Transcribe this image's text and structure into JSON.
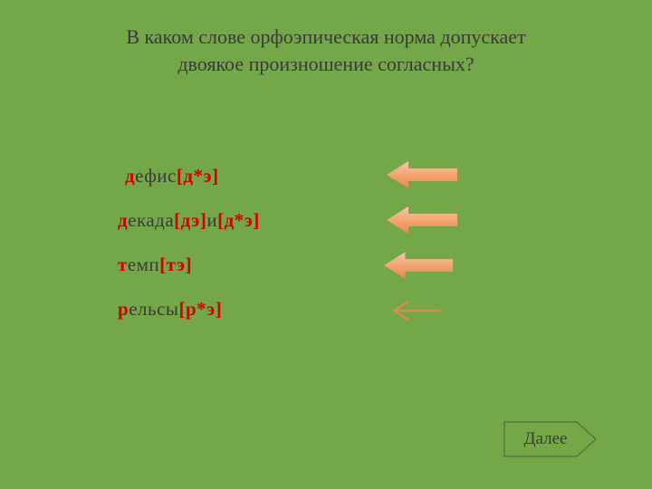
{
  "colors": {
    "background": "#73a748",
    "text_main": "#3a3a3a",
    "text_red": "#d40000",
    "arrow_fill_light": "#f7b58a",
    "arrow_fill_dark": "#e88a50",
    "button_stroke": "#566a44",
    "button_fill": "#73a748"
  },
  "question": {
    "line1": "В каком слове орфоэпическая норма допускает",
    "line2": "двоякое произношение согласных?"
  },
  "options": [
    {
      "pad_left": 8,
      "parts": [
        {
          "text": "д",
          "cls": "red"
        },
        {
          "text": "ефис ",
          "cls": "gray"
        },
        {
          "text": "[д*э]",
          "cls": "red"
        }
      ]
    },
    {
      "pad_left": 0,
      "parts": [
        {
          "text": "д",
          "cls": "red"
        },
        {
          "text": "екада ",
          "cls": "gray"
        },
        {
          "text": "[дэ]",
          "cls": "red"
        },
        {
          "text": "и ",
          "cls": "gray"
        },
        {
          "text": "[д*э]",
          "cls": "red"
        }
      ]
    },
    {
      "pad_left": 0,
      "parts": [
        {
          "text": "т",
          "cls": "red"
        },
        {
          "text": "емп ",
          "cls": "gray"
        },
        {
          "text": "[тэ]",
          "cls": "red"
        }
      ]
    },
    {
      "pad_left": 0,
      "parts": [
        {
          "text": "р",
          "cls": "red"
        },
        {
          "text": "ельсы ",
          "cls": "gray"
        },
        {
          "text": "[р*э]",
          "cls": "red"
        }
      ]
    }
  ],
  "arrows": [
    {
      "cls": "arrow-1",
      "style": "solid"
    },
    {
      "cls": "arrow-2",
      "style": "solid"
    },
    {
      "cls": "arrow-3",
      "style": "solid"
    },
    {
      "cls": "arrow-4",
      "style": "thin"
    }
  ],
  "next_label": "Далее"
}
